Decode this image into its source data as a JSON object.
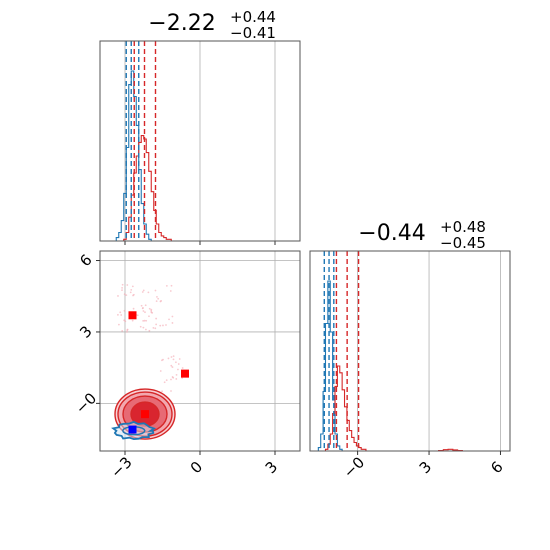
{
  "colors": {
    "series_a": "#1f77b4",
    "series_b": "#d62728",
    "grid": "#b0b0b0",
    "marker_red": "#ff0000",
    "marker_blue": "#0000ff"
  },
  "chart_data": [
    {
      "type": "histogram",
      "panel": "top-left",
      "title": "$-2.22^{+0.44}_{-0.41}$",
      "title_main": "−2.22",
      "title_sup": "+0.44",
      "title_sub": "−0.41",
      "xlim": [
        -4,
        4
      ],
      "grid": true,
      "bins": [
        -3.3,
        -3.2,
        -3.1,
        -3.0,
        -2.9,
        -2.8,
        -2.7,
        -2.6,
        -2.5,
        -2.4,
        -2.3,
        -2.2,
        -2.1,
        -2.0,
        -1.9,
        -1.8,
        -1.7,
        -1.6,
        -1.5,
        -1.4,
        -1.3,
        -1.2,
        -1.1,
        -1.0
      ],
      "series": [
        {
          "color_key": "series_a",
          "counts": [
            0.02,
            0.05,
            0.12,
            0.28,
            0.55,
            0.92,
            1.0,
            0.85,
            0.68,
            0.42,
            0.22,
            0.1,
            0.04,
            0.01,
            0,
            0,
            0,
            0,
            0,
            0,
            0,
            0,
            0,
            0
          ],
          "quantile_lines": [
            -2.95,
            -2.75,
            -2.45
          ]
        },
        {
          "color_key": "series_b",
          "counts": [
            0,
            0,
            0,
            0.01,
            0.05,
            0.14,
            0.27,
            0.4,
            0.5,
            0.58,
            0.62,
            0.6,
            0.52,
            0.41,
            0.29,
            0.18,
            0.1,
            0.05,
            0.03,
            0.02,
            0.01,
            0.01,
            0,
            0
          ],
          "quantile_lines": [
            -2.63,
            -2.22,
            -1.78
          ]
        }
      ]
    },
    {
      "type": "scatter-contour",
      "panel": "bottom-left",
      "xlim": [
        -4,
        4
      ],
      "ylim": [
        -2,
        6.4
      ],
      "x_ticks": [
        "−3",
        "0",
        "3"
      ],
      "x_tick_values": [
        -3,
        0,
        3
      ],
      "y_ticks": [
        "−0",
        "3",
        "6"
      ],
      "y_tick_values": [
        0,
        3,
        6
      ],
      "grid": true,
      "red_contour_center": [
        -2.2,
        -0.45
      ],
      "blue_contour_center": [
        -2.65,
        -1.15
      ],
      "markers": [
        {
          "x": -2.7,
          "y": 3.7,
          "color_key": "marker_red"
        },
        {
          "x": -0.6,
          "y": 1.25,
          "color_key": "marker_red"
        },
        {
          "x": -2.2,
          "y": -0.45,
          "color_key": "marker_red"
        },
        {
          "x": -2.7,
          "y": -1.1,
          "color_key": "marker_blue"
        }
      ]
    },
    {
      "type": "histogram",
      "panel": "bottom-right",
      "title_main": "−0.44",
      "title_sup": "+0.48",
      "title_sub": "−0.45",
      "xlim": [
        -2,
        6.4
      ],
      "x_ticks": [
        "−0",
        "3",
        "6"
      ],
      "x_tick_values": [
        0,
        3,
        6
      ],
      "grid": true,
      "bins": [
        -1.6,
        -1.5,
        -1.4,
        -1.3,
        -1.2,
        -1.1,
        -1.0,
        -0.9,
        -0.8,
        -0.7,
        -0.6,
        -0.5,
        -0.4,
        -0.3,
        -0.2,
        -0.1,
        0.0,
        0.1,
        0.2,
        0.3,
        0.4,
        0.5,
        0.6,
        0.7,
        0.8
      ],
      "series": [
        {
          "color_key": "series_a",
          "counts": [
            0.02,
            0.1,
            0.35,
            0.75,
            1.0,
            0.7,
            0.3,
            0.1,
            0.03,
            0.01,
            0,
            0,
            0,
            0,
            0,
            0,
            0,
            0,
            0,
            0,
            0,
            0,
            0,
            0,
            0
          ],
          "quantile_lines": [
            -1.4,
            -1.2,
            -1.0
          ]
        },
        {
          "color_key": "series_b",
          "counts": [
            0,
            0,
            0,
            0.01,
            0.04,
            0.1,
            0.22,
            0.38,
            0.5,
            0.46,
            0.36,
            0.26,
            0.18,
            0.12,
            0.08,
            0.05,
            0.03,
            0.02,
            0.01,
            0.01,
            0,
            0,
            0,
            0,
            0
          ],
          "quantile_lines": [
            -0.89,
            -0.44,
            0.04
          ]
        }
      ],
      "tail_bins": [
        3.5,
        3.7,
        3.9,
        4.1,
        4.3
      ],
      "tail_counts": [
        0.003,
        0.008,
        0.01,
        0.006,
        0.003
      ]
    }
  ]
}
